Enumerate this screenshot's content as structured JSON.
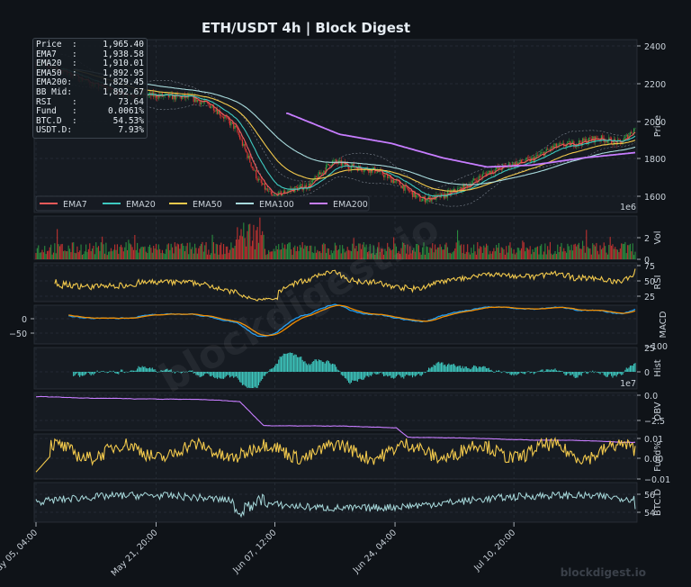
{
  "title": "ETH/USDT  4h  |  Block Digest",
  "watermark": "blockdigest.io",
  "footer_brand": "blockdigest.io",
  "info_box": [
    {
      "label": "Price  :",
      "value": "1,965.40"
    },
    {
      "label": "EMA7   :",
      "value": "1,938.58"
    },
    {
      "label": "EMA20  :",
      "value": "1,910.01"
    },
    {
      "label": "EMA50  :",
      "value": "1,892.95"
    },
    {
      "label": "EMA200:",
      "value": "1,829.45"
    },
    {
      "label": "BB Mid:",
      "value": "1,892.67"
    },
    {
      "label": "RSI    :",
      "value": "73.64"
    },
    {
      "label": "Fund   :",
      "value": "0.0061%"
    },
    {
      "label": "BTC.D  :",
      "value": "54.53%"
    },
    {
      "label": "USDT.D:",
      "value": "7.93%"
    }
  ],
  "legend": [
    {
      "name": "EMA7",
      "color": "#f05a5a"
    },
    {
      "name": "EMA20",
      "color": "#3ec9c0"
    },
    {
      "name": "EMA50",
      "color": "#f2c94c"
    },
    {
      "name": "EMA100",
      "color": "#a8dadc"
    },
    {
      "name": "EMA200",
      "color": "#c77dff"
    }
  ],
  "x_ticks": [
    "May 05, 04:00",
    "May 21, 20:00",
    "Jun 07, 12:00",
    "Jun 24, 04:00",
    "Jul 10, 20:00"
  ],
  "panels": [
    {
      "id": "price",
      "ylabel": "Price",
      "ticks": [
        "2400",
        "2200",
        "2000",
        "1800",
        "1600"
      ],
      "offset": "1e6"
    },
    {
      "id": "vol",
      "ylabel": "Vol",
      "ticks": [
        "2",
        "0"
      ],
      "offset": ""
    },
    {
      "id": "rsi",
      "ylabel": "RSI",
      "ticks": [
        "75",
        "50",
        "25"
      ],
      "offset": ""
    },
    {
      "id": "macd",
      "ylabel": "MACD",
      "ticks": [
        "0",
        "−50"
      ],
      "ticks_right": [
        "25",
        "−100"
      ],
      "offset": ""
    },
    {
      "id": "hist",
      "ylabel": "Hist",
      "ticks": [
        "0"
      ],
      "offset": "1e7"
    },
    {
      "id": "obv",
      "ylabel": "OBV",
      "ticks": [
        "0.0",
        "−2.5"
      ],
      "offset": ""
    },
    {
      "id": "fund",
      "ylabel": "Fund%",
      "ticks": [
        "0.01",
        "0.00",
        "−0.01"
      ],
      "offset": ""
    },
    {
      "id": "btcd",
      "ylabel": "BTC.D",
      "ticks": [
        "56",
        "54"
      ],
      "offset": ""
    }
  ],
  "colors": {
    "background": "#0f1318",
    "panel": "#161b22",
    "grid": "#2a313b",
    "text": "#c9d1d9",
    "up": "#2ea043",
    "down": "#da3633",
    "rsi": "#f2c94c",
    "macd": "#1f9bf0",
    "signal": "#f08c00",
    "hist": "#3ec9c0",
    "obv": "#c77dff",
    "fund": "#f2c94c",
    "btcd": "#a8dadc",
    "bb": "#7d8590"
  },
  "chart_data": {
    "type": "line",
    "symbol": "ETH/USDT",
    "interval": "4h",
    "x_range": [
      "May 04",
      "Jul 24"
    ],
    "price": {
      "ylim": [
        1500,
        2450
      ],
      "close_path": [
        {
          "x": "May 05",
          "y": 2310
        },
        {
          "x": "May 08",
          "y": 2270
        },
        {
          "x": "May 12",
          "y": 2200
        },
        {
          "x": "May 16",
          "y": 2150
        },
        {
          "x": "May 21",
          "y": 2140
        },
        {
          "x": "May 25",
          "y": 2130
        },
        {
          "x": "May 28",
          "y": 2080
        },
        {
          "x": "May 31",
          "y": 1960
        },
        {
          "x": "Jun 03",
          "y": 1680
        },
        {
          "x": "Jun 05",
          "y": 1580
        },
        {
          "x": "Jun 07",
          "y": 1620
        },
        {
          "x": "Jun 10",
          "y": 1650
        },
        {
          "x": "Jun 13",
          "y": 1780
        },
        {
          "x": "Jun 16",
          "y": 1750
        },
        {
          "x": "Jun 19",
          "y": 1730
        },
        {
          "x": "Jun 22",
          "y": 1660
        },
        {
          "x": "Jun 25",
          "y": 1570
        },
        {
          "x": "Jun 28",
          "y": 1590
        },
        {
          "x": "Jul 01",
          "y": 1640
        },
        {
          "x": "Jul 04",
          "y": 1720
        },
        {
          "x": "Jul 07",
          "y": 1760
        },
        {
          "x": "Jul 10",
          "y": 1790
        },
        {
          "x": "Jul 13",
          "y": 1860
        },
        {
          "x": "Jul 16",
          "y": 1880
        },
        {
          "x": "Jul 19",
          "y": 1910
        },
        {
          "x": "Jul 22",
          "y": 1880
        },
        {
          "x": "Jul 24",
          "y": 1965
        }
      ],
      "ema200_path": [
        {
          "x": "Jun 07",
          "y": 2045
        },
        {
          "x": "Jun 14",
          "y": 1930
        },
        {
          "x": "Jun 21",
          "y": 1880
        },
        {
          "x": "Jun 28",
          "y": 1800
        },
        {
          "x": "Jul 04",
          "y": 1750
        },
        {
          "x": "Jul 10",
          "y": 1760
        },
        {
          "x": "Jul 17",
          "y": 1800
        },
        {
          "x": "Jul 24",
          "y": 1829
        }
      ]
    },
    "volume": {
      "ylim": [
        0,
        3000000
      ],
      "unit": "1e6"
    },
    "rsi": {
      "ylim": [
        10,
        85
      ],
      "last": 73.64
    },
    "macd": {
      "ylim": [
        -110,
        30
      ]
    },
    "obv": {
      "ylim": [
        -40000000,
        5000000
      ]
    },
    "fund": {
      "ylim": [
        -0.013,
        0.013
      ],
      "last": 0.0061
    },
    "btc_d": {
      "ylim": [
        53.3,
        57
      ],
      "last": 54.53
    }
  }
}
